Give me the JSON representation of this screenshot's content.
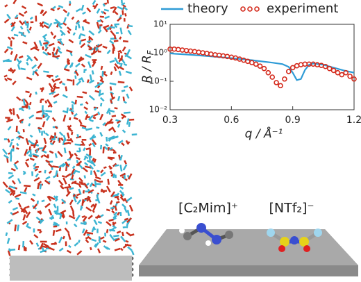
{
  "chart_data": {
    "type": "line",
    "x_label": "q / Å⁻¹",
    "y_label": "R / R",
    "y_label_sub": "F",
    "xlim": [
      0.3,
      1.2
    ],
    "xticks": [
      0.3,
      0.6,
      0.9,
      1.2
    ],
    "ylim": [
      0.01,
      10
    ],
    "log_y": true,
    "yticks": [
      {
        "value": 0.01,
        "label": "10⁻²"
      },
      {
        "value": 0.1,
        "label": "10⁻¹"
      },
      {
        "value": 1,
        "label": "10⁰"
      },
      {
        "value": 10,
        "label": "10¹"
      }
    ],
    "legend": "top",
    "series": [
      {
        "name": "theory",
        "color": "#2e9bd6",
        "marker": "line",
        "x": [
          0.3,
          0.4,
          0.5,
          0.6,
          0.7,
          0.8,
          0.85,
          0.88,
          0.9,
          0.92,
          0.94,
          0.96,
          0.98,
          1.0,
          1.05,
          1.1,
          1.15,
          1.2
        ],
        "values": [
          0.95,
          0.85,
          0.75,
          0.65,
          0.55,
          0.45,
          0.4,
          0.32,
          0.2,
          0.11,
          0.12,
          0.25,
          0.38,
          0.42,
          0.38,
          0.3,
          0.24,
          0.2
        ]
      },
      {
        "name": "experiment",
        "color": "#d42a1c",
        "marker": "circle",
        "x": [
          0.3,
          0.32,
          0.34,
          0.36,
          0.38,
          0.4,
          0.42,
          0.44,
          0.46,
          0.48,
          0.5,
          0.52,
          0.54,
          0.56,
          0.58,
          0.6,
          0.62,
          0.64,
          0.66,
          0.68,
          0.7,
          0.72,
          0.74,
          0.76,
          0.78,
          0.8,
          0.82,
          0.84,
          0.86,
          0.88,
          0.9,
          0.92,
          0.94,
          0.96,
          0.98,
          1.0,
          1.02,
          1.04,
          1.06,
          1.08,
          1.1,
          1.12,
          1.14,
          1.16,
          1.18,
          1.2
        ],
        "values": [
          1.35,
          1.35,
          1.3,
          1.25,
          1.2,
          1.15,
          1.1,
          1.05,
          1.0,
          0.95,
          0.9,
          0.85,
          0.82,
          0.78,
          0.74,
          0.7,
          0.66,
          0.6,
          0.55,
          0.5,
          0.45,
          0.4,
          0.34,
          0.28,
          0.2,
          0.14,
          0.09,
          0.07,
          0.12,
          0.22,
          0.3,
          0.35,
          0.38,
          0.4,
          0.4,
          0.4,
          0.38,
          0.36,
          0.33,
          0.28,
          0.24,
          0.2,
          0.17,
          0.2,
          0.15,
          0.12
        ]
      }
    ]
  },
  "molecules": {
    "cation": "[C₂Mim]⁺",
    "anion": "[NTf₂]⁻"
  }
}
